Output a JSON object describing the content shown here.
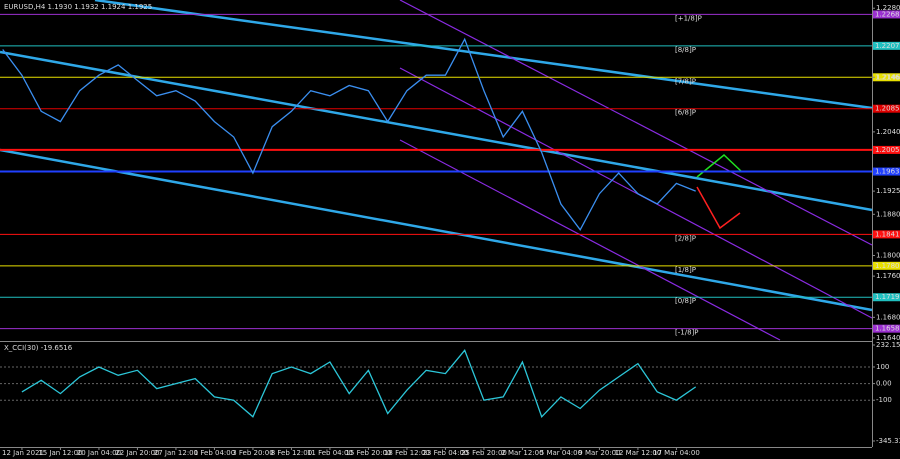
{
  "chart_data": [
    {
      "type": "line",
      "title": "EURUSD,H4 1.1930 1.1932 1.1924 1.1925",
      "x": [
        -0.5,
        0,
        0.5,
        1,
        1.5,
        2,
        2.5,
        3,
        3.5,
        4,
        4.5,
        5,
        5.5,
        6,
        6.5,
        7,
        7.5,
        8,
        8.5,
        9,
        9.5,
        10,
        10.5,
        11,
        11.5,
        12,
        12.5,
        13,
        13.5,
        14,
        14.5,
        15,
        15.5,
        16,
        16.5,
        17,
        17.5
      ],
      "values": [
        1.22,
        1.215,
        1.208,
        1.206,
        1.212,
        1.215,
        1.217,
        1.214,
        1.211,
        1.212,
        1.21,
        1.206,
        1.203,
        1.196,
        1.205,
        1.208,
        1.212,
        1.211,
        1.213,
        1.212,
        1.206,
        1.212,
        1.215,
        1.215,
        1.222,
        1.212,
        1.203,
        1.208,
        1.2,
        1.19,
        1.185,
        1.192,
        1.196,
        1.192,
        1.19,
        1.194,
        1.1925
      ],
      "color": "#3b8ff0",
      "xlim": [
        -0.57,
        22.08
      ],
      "xticks": [
        {
          "value": 0,
          "label": "12 Jan 2021"
        },
        {
          "value": 1,
          "label": "15 Jan 12:00"
        },
        {
          "value": 2,
          "label": "20 Jan 04:00"
        },
        {
          "value": 3,
          "label": "22 Jan 20:00"
        },
        {
          "value": 4,
          "label": "27 Jan 12:00"
        },
        {
          "value": 5,
          "label": "1 Feb 04:00"
        },
        {
          "value": 6,
          "label": "3 Feb 20:00"
        },
        {
          "value": 7,
          "label": "8 Feb 12:00"
        },
        {
          "value": 8,
          "label": "11 Feb 04:00"
        },
        {
          "value": 9,
          "label": "15 Feb 20:00"
        },
        {
          "value": 10,
          "label": "18 Feb 12:00"
        },
        {
          "value": 11,
          "label": "23 Feb 04:00"
        },
        {
          "value": 12,
          "label": "25 Feb 20:00"
        },
        {
          "value": 13,
          "label": "2 Mar 12:00"
        },
        {
          "value": 14,
          "label": "5 Mar 04:00"
        },
        {
          "value": 15,
          "label": "9 Mar 20:00"
        },
        {
          "value": 16,
          "label": "12 Mar 12:00"
        },
        {
          "value": 17,
          "label": "17 Mar 04:00"
        }
      ],
      "ylim": [
        1.1636,
        1.2296
      ],
      "yticks": [
        {
          "value": 1.228,
          "label": "1.2280"
        },
        {
          "value": 1.2146,
          "label": "1.2146"
        },
        {
          "value": 1.204,
          "label": "1.2040"
        },
        {
          "value": 1.1925,
          "label": "1.1925"
        },
        {
          "value": 1.188,
          "label": "1.1880"
        },
        {
          "value": 1.18,
          "label": "1.1800"
        },
        {
          "value": 1.176,
          "label": "1.1760"
        },
        {
          "value": 1.168,
          "label": "1.1680"
        },
        {
          "value": 1.164,
          "label": "1.1640"
        }
      ],
      "levels": [
        {
          "name": "[+1/8]P",
          "value": 1.2268,
          "label": "1.2268",
          "color": "#9b30d0"
        },
        {
          "name": "[8/8]P",
          "value": 1.2207,
          "label": "1.2207",
          "color": "#20c0c0"
        },
        {
          "name": "[7/8]P",
          "value": 1.2146,
          "label": "1.2146",
          "color": "#e8e000"
        },
        {
          "name": "[6/8]P",
          "value": 1.2085,
          "label": "1.2085",
          "color": "#e00000"
        },
        {
          "value": 1.2005,
          "label": "1.2005",
          "color": "#ff1010"
        },
        {
          "value": 1.1963,
          "label": "1.1963",
          "color": "#2040ff"
        },
        {
          "name": "[2/8]P",
          "value": 1.1841,
          "label": "1.1841",
          "color": "#ff1010"
        },
        {
          "name": "[1/8]P",
          "value": 1.178,
          "label": "1.1780",
          "color": "#e8e000"
        },
        {
          "name": "[0/8]P",
          "value": 1.1719,
          "label": "1.1719",
          "color": "#20c0c0"
        },
        {
          "name": "[-1/8]P",
          "value": 1.1658,
          "label": "1.1658",
          "color": "#9b30d0"
        }
      ]
    },
    {
      "type": "line",
      "title": "X_CCI(30) -19.6516",
      "x": [
        0,
        0.5,
        1,
        1.5,
        2,
        2.5,
        3,
        3.5,
        4,
        4.5,
        5,
        5.5,
        6,
        6.5,
        7,
        7.5,
        8,
        8.5,
        9,
        9.5,
        10,
        10.5,
        11,
        11.5,
        12,
        12.5,
        13,
        13.5,
        14,
        14.5,
        15,
        15.5,
        16,
        16.5,
        17,
        17.5
      ],
      "values": [
        -50,
        20,
        -60,
        40,
        100,
        50,
        80,
        -30,
        0,
        30,
        -80,
        -100,
        -200,
        60,
        100,
        60,
        130,
        -60,
        80,
        -180,
        -40,
        80,
        60,
        200,
        -100,
        -80,
        130,
        -200,
        -80,
        -150,
        -40,
        40,
        120,
        -50,
        -100,
        -20
      ],
      "color": "#2cc6d8",
      "ylim": [
        -345.334,
        232.1559
      ],
      "yticks": [
        232.1559,
        100,
        {
          "value": 0,
          "label": "0.00"
        },
        -100,
        -345.334
      ]
    }
  ]
}
